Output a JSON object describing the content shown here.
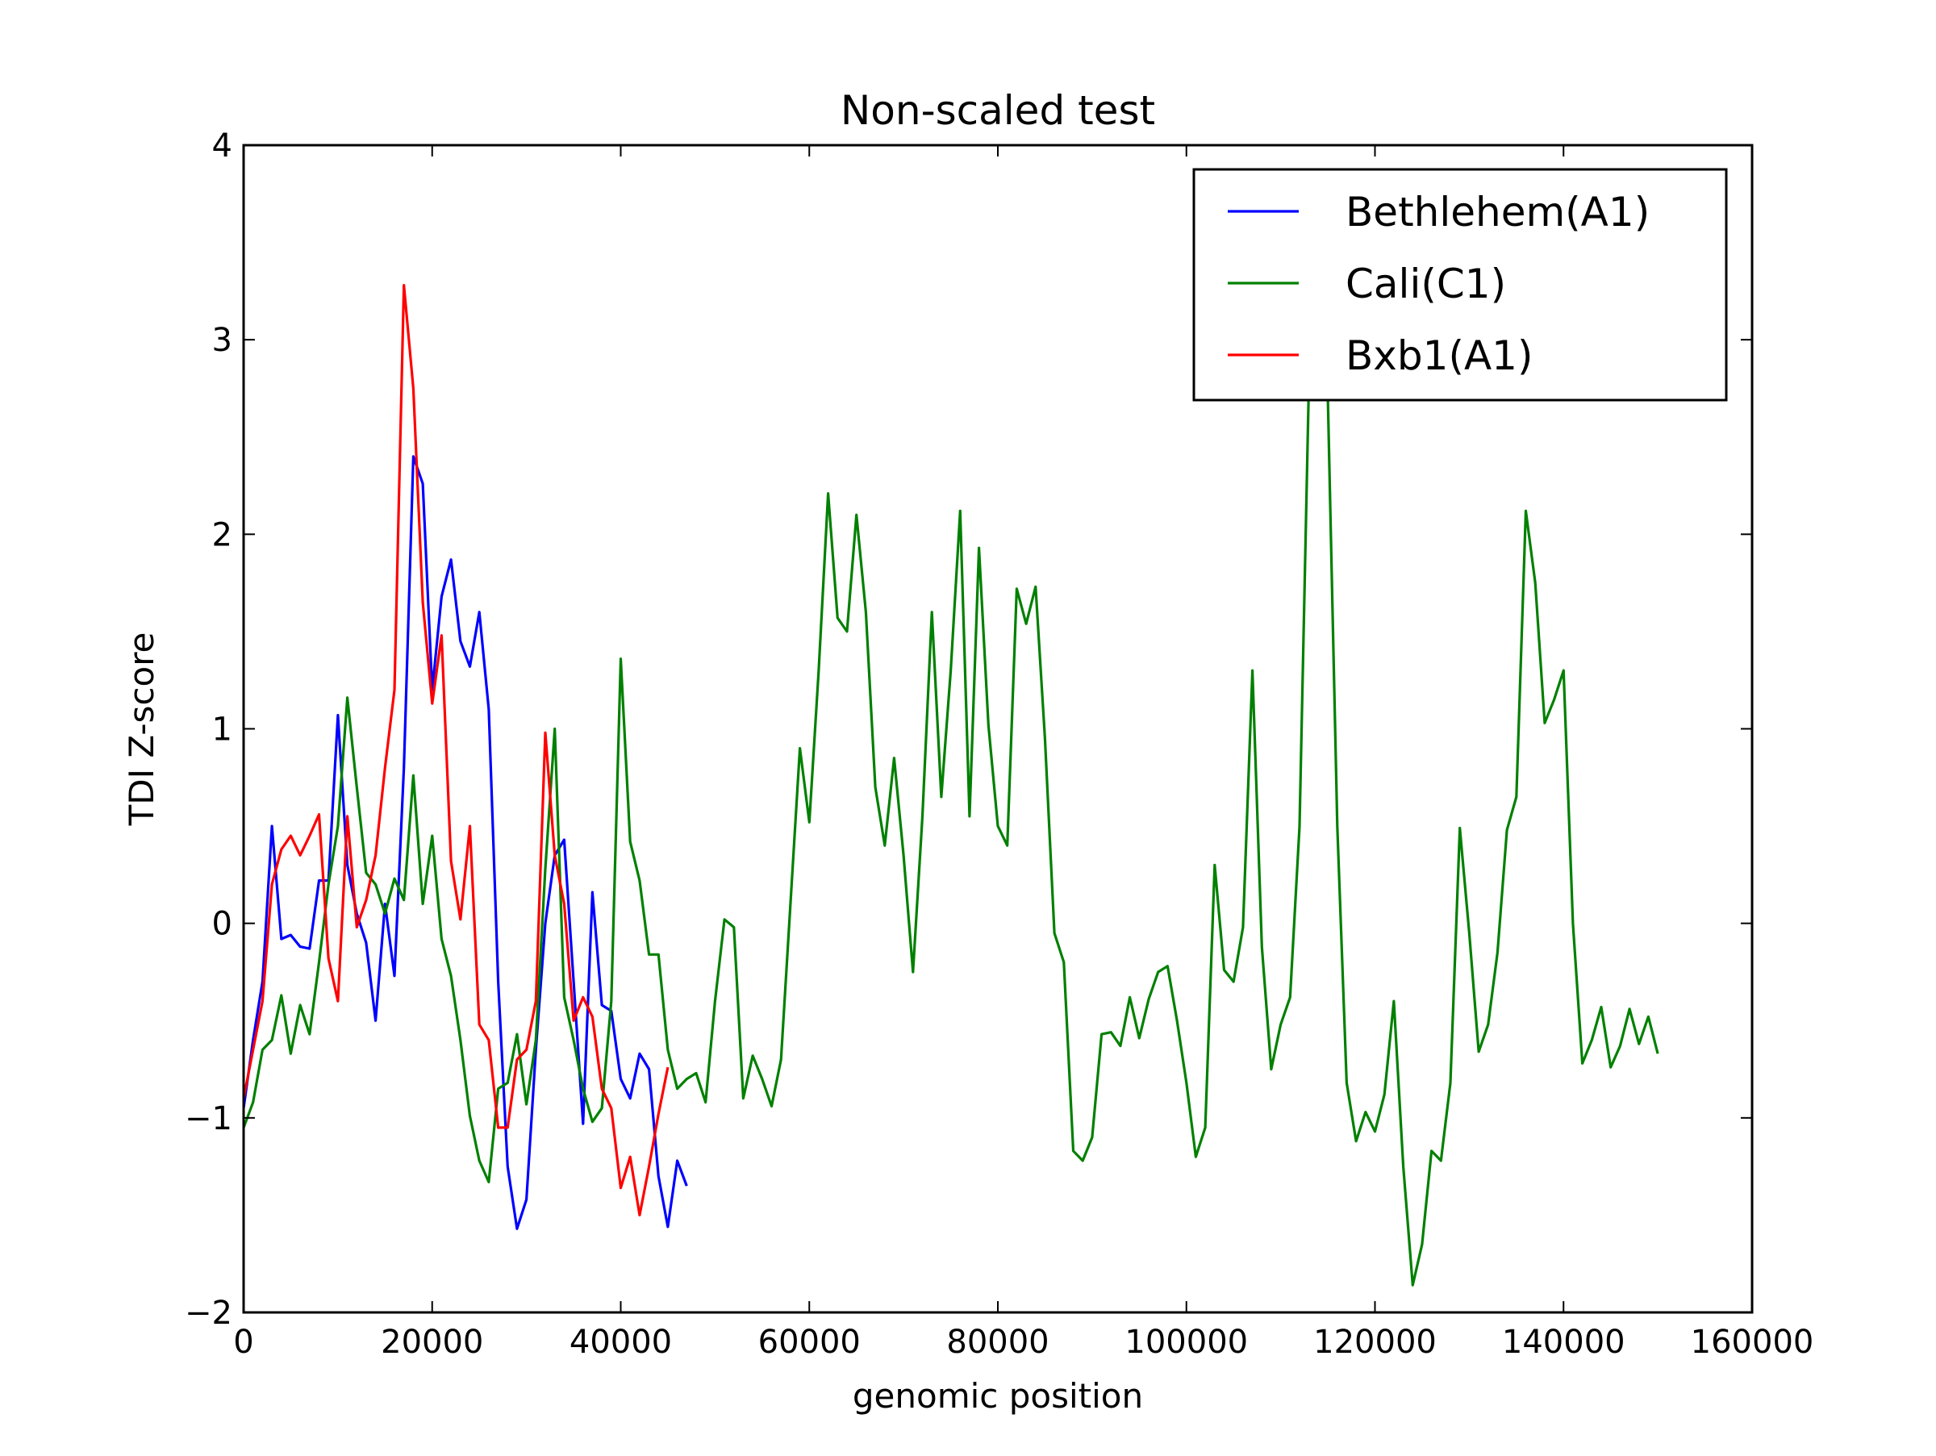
{
  "chart_data": {
    "type": "line",
    "title": "Non-scaled test",
    "xlabel": "genomic position",
    "ylabel": "TDI Z-score",
    "xlim": [
      0,
      160000
    ],
    "ylim": [
      -2,
      4
    ],
    "xticks": [
      0,
      20000,
      40000,
      60000,
      80000,
      100000,
      120000,
      140000,
      160000
    ],
    "xtick_labels": [
      "0",
      "20000",
      "40000",
      "60000",
      "80000",
      "100000",
      "120000",
      "140000",
      "160000"
    ],
    "yticks": [
      -2,
      -1,
      0,
      1,
      2,
      3,
      4
    ],
    "ytick_labels": [
      "−2",
      "−1",
      "0",
      "1",
      "2",
      "3",
      "4"
    ],
    "grid": false,
    "legend_position": "top-right",
    "series": [
      {
        "name": "Bethlehem(A1)",
        "color": "#0000ff",
        "x": [
          0,
          1000,
          2000,
          3000,
          4000,
          5000,
          6000,
          7000,
          8000,
          9000,
          10000,
          11000,
          12000,
          13000,
          14000,
          15000,
          16000,
          17000,
          18000,
          19000,
          20000,
          21000,
          22000,
          23000,
          24000,
          25000,
          26000,
          27000,
          28000,
          29000,
          30000,
          31000,
          32000,
          33000,
          34000,
          35000,
          36000,
          37000,
          38000,
          39000,
          40000,
          41000,
          42000,
          43000,
          44000,
          45000,
          46000,
          47000
        ],
        "y": [
          -0.95,
          -0.6,
          -0.3,
          0.5,
          -0.08,
          -0.06,
          -0.12,
          -0.13,
          0.22,
          0.22,
          1.07,
          0.3,
          0.05,
          -0.1,
          -0.5,
          0.1,
          -0.27,
          0.8,
          2.4,
          2.26,
          1.2,
          1.68,
          1.87,
          1.45,
          1.32,
          1.6,
          1.1,
          -0.3,
          -1.25,
          -1.57,
          -1.42,
          -0.65,
          0.0,
          0.35,
          0.43,
          -0.3,
          -1.03,
          0.16,
          -0.42,
          -0.45,
          -0.8,
          -0.9,
          -0.67,
          -0.75,
          -1.3,
          -1.56,
          -1.22,
          -1.35
        ]
      },
      {
        "name": "Cali(C1)",
        "color": "#008000",
        "x": [
          0,
          1000,
          2000,
          3000,
          4000,
          5000,
          6000,
          7000,
          8000,
          9000,
          10000,
          11000,
          12000,
          13000,
          14000,
          15000,
          16000,
          17000,
          18000,
          19000,
          20000,
          21000,
          22000,
          23000,
          24000,
          25000,
          26000,
          27000,
          28000,
          29000,
          30000,
          31000,
          32000,
          33000,
          34000,
          35000,
          36000,
          37000,
          38000,
          39000,
          40000,
          41000,
          42000,
          43000,
          44000,
          45000,
          46000,
          47000,
          48000,
          49000,
          50000,
          51000,
          52000,
          53000,
          54000,
          55000,
          56000,
          57000,
          58000,
          59000,
          60000,
          61000,
          62000,
          63000,
          64000,
          65000,
          66000,
          67000,
          68000,
          69000,
          70000,
          71000,
          72000,
          73000,
          74000,
          75000,
          76000,
          77000,
          78000,
          79000,
          80000,
          81000,
          82000,
          83000,
          84000,
          85000,
          86000,
          87000,
          88000,
          89000,
          90000,
          91000,
          92000,
          93000,
          94000,
          95000,
          96000,
          97000,
          98000,
          99000,
          100000,
          101000,
          102000,
          103000,
          104000,
          105000,
          106000,
          107000,
          108000,
          109000,
          110000,
          111000,
          112000,
          113000,
          114000,
          115000,
          116000,
          117000,
          118000,
          119000,
          120000,
          121000,
          122000,
          123000,
          124000,
          125000,
          126000,
          127000,
          128000,
          129000,
          130000,
          131000,
          132000,
          133000,
          134000,
          135000,
          136000,
          137000,
          138000,
          139000,
          140000,
          141000,
          142000,
          143000,
          144000,
          145000,
          146000,
          147000,
          148000,
          149000,
          150000
        ],
        "y": [
          -1.05,
          -0.92,
          -0.65,
          -0.6,
          -0.37,
          -0.67,
          -0.42,
          -0.57,
          -0.2,
          0.2,
          0.5,
          1.16,
          0.7,
          0.26,
          0.2,
          0.05,
          0.23,
          0.12,
          0.76,
          0.1,
          0.45,
          -0.08,
          -0.27,
          -0.6,
          -0.99,
          -1.22,
          -1.33,
          -0.85,
          -0.82,
          -0.57,
          -0.93,
          -0.6,
          0.28,
          1.0,
          -0.38,
          -0.6,
          -0.85,
          -1.02,
          -0.95,
          -0.4,
          1.36,
          0.42,
          0.22,
          -0.16,
          -0.16,
          -0.65,
          -0.85,
          -0.8,
          -0.77,
          -0.92,
          -0.4,
          0.02,
          -0.02,
          -0.9,
          -0.68,
          -0.8,
          -0.94,
          -0.7,
          0.1,
          0.9,
          0.52,
          1.3,
          2.21,
          1.57,
          1.5,
          2.1,
          1.6,
          0.7,
          0.4,
          0.85,
          0.35,
          -0.25,
          0.55,
          1.6,
          0.65,
          1.3,
          2.12,
          0.55,
          1.93,
          1.02,
          0.5,
          0.4,
          1.72,
          1.54,
          1.73,
          0.95,
          -0.05,
          -0.2,
          -1.17,
          -1.22,
          -1.1,
          -0.57,
          -0.56,
          -0.63,
          -0.38,
          -0.59,
          -0.39,
          -0.25,
          -0.22,
          -0.5,
          -0.82,
          -1.2,
          -1.05,
          0.3,
          -0.24,
          -0.3,
          -0.02,
          1.3,
          -0.12,
          -0.75,
          -0.52,
          -0.38,
          0.5,
          2.8,
          3.3,
          2.7,
          0.5,
          -0.82,
          -1.12,
          -0.97,
          -1.07,
          -0.88,
          -0.4,
          -1.25,
          -1.86,
          -1.65,
          -1.17,
          -1.22,
          -0.82,
          0.49,
          -0.05,
          -0.66,
          -0.52,
          -0.15,
          0.48,
          0.65,
          2.12,
          1.75,
          1.03,
          1.15,
          1.3,
          0.0,
          -0.72,
          -0.6,
          -0.43,
          -0.74,
          -0.63,
          -0.44,
          -0.62,
          -0.48,
          -0.67
        ]
      },
      {
        "name": "Bxb1(A1)",
        "color": "#ff0000",
        "x": [
          0,
          1000,
          2000,
          3000,
          4000,
          5000,
          6000,
          7000,
          8000,
          9000,
          10000,
          11000,
          12000,
          13000,
          14000,
          15000,
          16000,
          17000,
          18000,
          19000,
          20000,
          21000,
          22000,
          23000,
          24000,
          25000,
          26000,
          27000,
          28000,
          29000,
          30000,
          31000,
          32000,
          33000,
          34000,
          35000,
          36000,
          37000,
          38000,
          39000,
          40000,
          41000,
          42000,
          43000,
          44000,
          45000
        ],
        "y": [
          -0.9,
          -0.65,
          -0.4,
          0.2,
          0.38,
          0.45,
          0.35,
          0.45,
          0.56,
          -0.18,
          -0.4,
          0.55,
          -0.02,
          0.12,
          0.35,
          0.8,
          1.2,
          3.28,
          2.75,
          1.65,
          1.13,
          1.48,
          0.32,
          0.02,
          0.5,
          -0.52,
          -0.6,
          -1.05,
          -1.05,
          -0.7,
          -0.65,
          -0.4,
          0.98,
          0.35,
          0.1,
          -0.5,
          -0.38,
          -0.48,
          -0.85,
          -0.95,
          -1.36,
          -1.2,
          -1.5,
          -1.25,
          -0.98,
          -0.74
        ]
      }
    ]
  }
}
